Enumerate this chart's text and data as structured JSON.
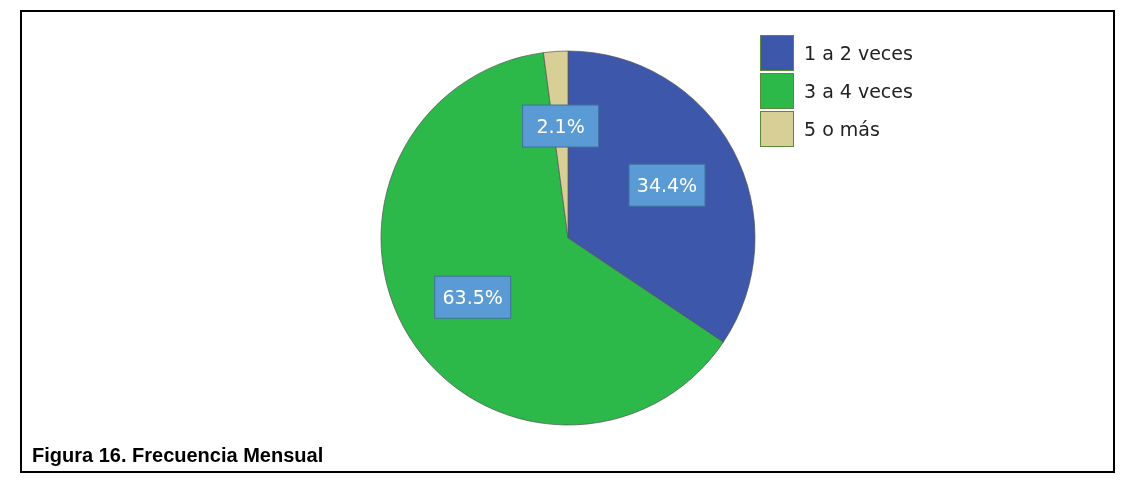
{
  "chart_data": {
    "type": "pie",
    "categories": [
      "1 a 2 veces",
      "3 a 4 veces",
      "5 o más"
    ],
    "values": [
      34.4,
      63.5,
      2.1
    ],
    "colors": [
      "#3d57aa",
      "#2db84a",
      "#d8cf96"
    ],
    "value_labels": [
      "34.4%",
      "63.5%",
      "2.1%"
    ],
    "legend": "top right",
    "annotations": [
      "Figura 16. Frecuencia Mensual"
    ]
  }
}
